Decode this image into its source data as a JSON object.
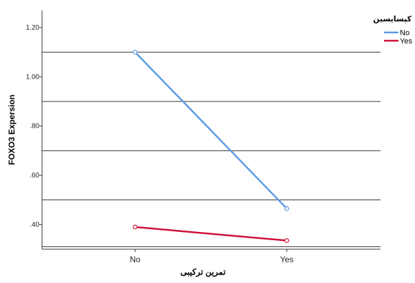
{
  "chart_data": {
    "type": "line",
    "categories": [
      "No",
      "Yes"
    ],
    "series": [
      {
        "name": "No",
        "values": [
          1.1,
          0.465
        ],
        "color": "#5b9be6"
      },
      {
        "name": "Yes",
        "values": [
          0.39,
          0.335
        ],
        "color": "#d0103a"
      }
    ],
    "xlabel": "تمرین ترکیبی",
    "ylabel": "FOXO3 Expersion",
    "ylim": [
      0.3,
      1.27
    ],
    "yticks": [
      0.4,
      0.6,
      0.8,
      1.0,
      1.2
    ],
    "ytick_labels": [
      ".40",
      ".60",
      ".80",
      "1.00",
      "1.20"
    ],
    "gridlines": [
      0.31,
      0.5,
      0.7,
      0.9,
      1.1
    ],
    "grid": true,
    "legend": {
      "title": "کپسایسین",
      "placement": "top-right"
    }
  }
}
